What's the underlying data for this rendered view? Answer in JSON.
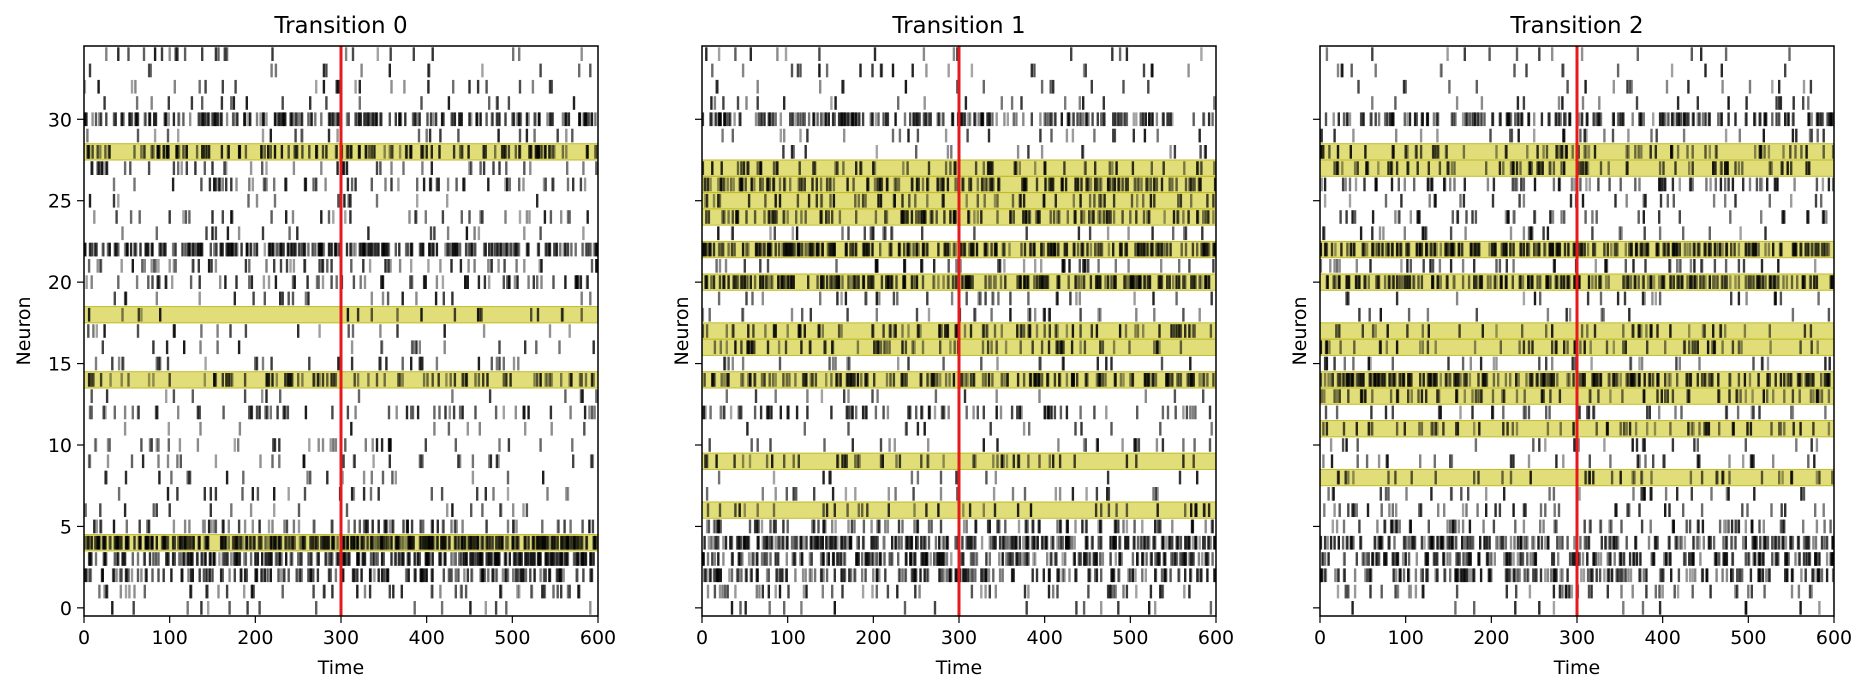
{
  "chart_data": [
    {
      "type": "raster",
      "title": "Transition 0",
      "xlabel": "Time",
      "ylabel": "Neuron",
      "xlim": [
        0,
        600
      ],
      "ylim": [
        -0.5,
        34.5
      ],
      "xticks": [
        0,
        100,
        200,
        300,
        400,
        500,
        600
      ],
      "yticks": [
        0,
        5,
        10,
        15,
        20,
        25,
        30
      ],
      "show_yticklabels": true,
      "transition_time": 300,
      "highlighted_neurons": [
        4,
        14,
        18,
        28
      ],
      "n_neurons": 35
    },
    {
      "type": "raster",
      "title": "Transition 1",
      "xlabel": "Time",
      "ylabel": "Neuron",
      "xlim": [
        0,
        600
      ],
      "ylim": [
        -0.5,
        34.5
      ],
      "xticks": [
        0,
        100,
        200,
        300,
        400,
        500,
        600
      ],
      "yticks": [
        0,
        5,
        10,
        15,
        20,
        25,
        30
      ],
      "show_yticklabels": false,
      "transition_time": 300,
      "highlighted_neurons": [
        6,
        9,
        14,
        16,
        17,
        20,
        22,
        24,
        25,
        26,
        27
      ],
      "n_neurons": 35
    },
    {
      "type": "raster",
      "title": "Transition 2",
      "xlabel": "Time",
      "ylabel": "Neuron",
      "xlim": [
        0,
        600
      ],
      "ylim": [
        -0.5,
        34.5
      ],
      "xticks": [
        0,
        100,
        200,
        300,
        400,
        500,
        600
      ],
      "yticks": [
        0,
        5,
        10,
        15,
        20,
        25,
        30
      ],
      "show_yticklabels": false,
      "transition_time": 300,
      "highlighted_neurons": [
        8,
        11,
        13,
        14,
        16,
        17,
        20,
        22,
        27,
        28
      ],
      "n_neurons": 35
    }
  ],
  "spike_rates": [
    [
      0.03,
      0.08,
      0.25,
      0.45,
      0.55,
      0.12,
      0.05,
      0.04,
      0.03,
      0.06,
      0.06,
      0.03,
      0.1,
      0.03,
      0.15,
      0.04,
      0.03,
      0.03,
      0.03,
      0.04,
      0.12,
      0.14,
      0.45,
      0.04,
      0.06,
      0.04,
      0.1,
      0.06,
      0.18,
      0.04,
      0.35,
      0.04,
      0.04,
      0.03,
      0.03
    ],
    [
      0.03,
      0.08,
      0.25,
      0.3,
      0.45,
      0.12,
      0.08,
      0.05,
      0.04,
      0.08,
      0.04,
      0.03,
      0.1,
      0.03,
      0.25,
      0.04,
      0.1,
      0.12,
      0.03,
      0.04,
      0.28,
      0.08,
      0.4,
      0.04,
      0.2,
      0.1,
      0.25,
      0.1,
      0.04,
      0.04,
      0.3,
      0.04,
      0.04,
      0.03,
      0.03
    ],
    [
      0.03,
      0.08,
      0.25,
      0.3,
      0.35,
      0.1,
      0.08,
      0.05,
      0.1,
      0.05,
      0.05,
      0.1,
      0.06,
      0.12,
      0.3,
      0.06,
      0.1,
      0.1,
      0.03,
      0.04,
      0.3,
      0.08,
      0.35,
      0.04,
      0.08,
      0.06,
      0.12,
      0.14,
      0.1,
      0.05,
      0.3,
      0.04,
      0.04,
      0.03,
      0.03
    ]
  ],
  "colors": {
    "spike": "#000000",
    "highlight_fill": "#d4d042",
    "highlight_edge": "#bfbb2a",
    "transition_line": "#e41a1c",
    "axes": "#000000"
  }
}
